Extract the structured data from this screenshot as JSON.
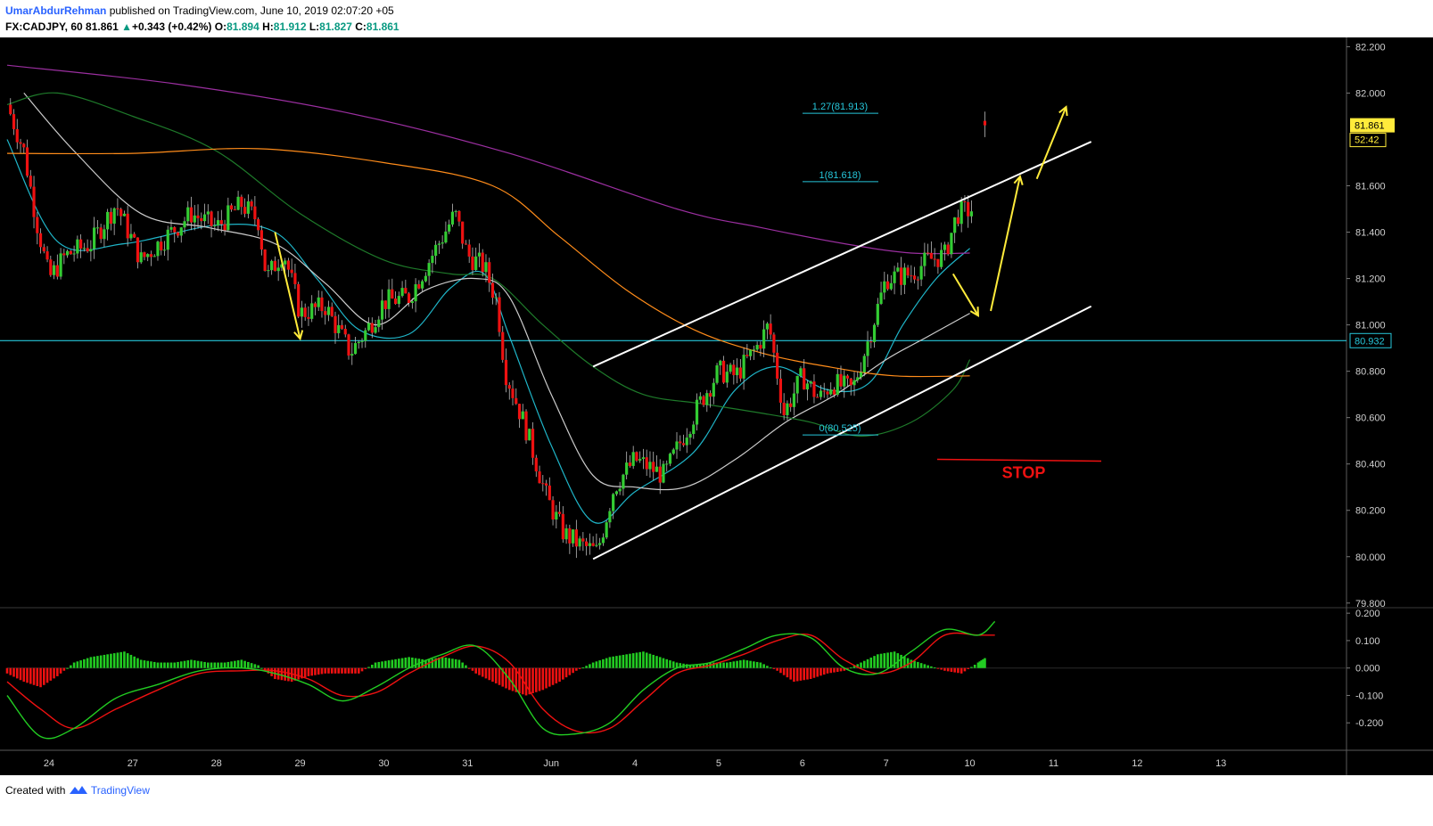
{
  "header": {
    "author": "UmarAbdurRehman",
    "published_text": "published on TradingView.com, June 10, 2019 02:07:20 +05",
    "symbol": "FX:CADJPY, 60",
    "last": "81.861",
    "change": "+0.343 (+0.42%)",
    "o_label": "O:",
    "o": "81.894",
    "h_label": "H:",
    "h": "81.912",
    "l_label": "L:",
    "l": "81.827",
    "c_label": "C:",
    "c": "81.861"
  },
  "footer": {
    "created_with": "Created with",
    "brand": "TradingView"
  },
  "colors": {
    "background": "#000000",
    "up": "#33cc33",
    "down": "#ee1111",
    "ema_fast": "#1fb5c8",
    "ema_mid": "#cccccc",
    "ema_green": "#1e7a2a",
    "ema_orange": "#ff8c1a",
    "ema_purple": "#9b2fa0",
    "channel": "#ffffff",
    "arrows": "#ffeb3b",
    "hline": "#26c6da",
    "stop": "#ee1111",
    "macd": "#22cc22",
    "signal": "#ee1111"
  },
  "chart_data": [
    {
      "type": "candlestick",
      "symbol": "FX:CADJPY",
      "interval": "60",
      "x_ticks": [
        "24",
        "27",
        "28",
        "29",
        "30",
        "31",
        "Jun",
        "4",
        "5",
        "6",
        "7",
        "10",
        "11",
        "12",
        "13"
      ],
      "y_ticks": [
        "82.200",
        "82.000",
        "81.600",
        "81.400",
        "81.200",
        "81.000",
        "80.800",
        "80.600",
        "80.400",
        "80.200",
        "80.000",
        "79.800"
      ],
      "ylim": [
        79.78,
        82.24
      ],
      "xlim": [
        0,
        16
      ],
      "price_path": [
        [
          0.0,
          81.95
        ],
        [
          0.2,
          81.75
        ],
        [
          0.35,
          81.45
        ],
        [
          0.5,
          81.2
        ],
        [
          0.7,
          81.3
        ],
        [
          1.0,
          81.35
        ],
        [
          1.3,
          81.52
        ],
        [
          1.6,
          81.28
        ],
        [
          1.9,
          81.38
        ],
        [
          2.2,
          81.48
        ],
        [
          2.5,
          81.42
        ],
        [
          2.8,
          81.52
        ],
        [
          3.0,
          81.45
        ],
        [
          3.1,
          81.2
        ],
        [
          3.3,
          81.32
        ],
        [
          3.5,
          81.05
        ],
        [
          3.8,
          81.08
        ],
        [
          4.1,
          80.88
        ],
        [
          4.3,
          80.98
        ],
        [
          4.5,
          81.1
        ],
        [
          4.8,
          81.12
        ],
        [
          5.0,
          81.25
        ],
        [
          5.2,
          81.38
        ],
        [
          5.35,
          81.48
        ],
        [
          5.5,
          81.3
        ],
        [
          5.7,
          81.25
        ],
        [
          5.85,
          81.1
        ],
        [
          5.95,
          80.8
        ],
        [
          6.2,
          80.55
        ],
        [
          6.45,
          80.25
        ],
        [
          6.65,
          80.1
        ],
        [
          6.85,
          80.05
        ],
        [
          7.05,
          80.02
        ],
        [
          7.25,
          80.3
        ],
        [
          7.5,
          80.42
        ],
        [
          7.85,
          80.35
        ],
        [
          8.05,
          80.5
        ],
        [
          8.3,
          80.68
        ],
        [
          8.5,
          80.8
        ],
        [
          8.7,
          80.78
        ],
        [
          8.95,
          80.9
        ],
        [
          9.1,
          81.0
        ],
        [
          9.28,
          80.62
        ],
        [
          9.5,
          80.78
        ],
        [
          9.7,
          80.68
        ],
        [
          9.85,
          80.75
        ],
        [
          10.1,
          80.72
        ],
        [
          10.3,
          80.95
        ],
        [
          10.5,
          81.2
        ],
        [
          10.8,
          81.22
        ],
        [
          11.0,
          81.28
        ],
        [
          11.2,
          81.3
        ],
        [
          11.35,
          81.48
        ],
        [
          11.55,
          81.5
        ],
        [
          11.68,
          81.88
        ]
      ],
      "moving_averages": [
        {
          "color": "#1fb5c8",
          "points": [
            [
              0,
              81.8
            ],
            [
              0.6,
              81.36
            ],
            [
              1.4,
              81.35
            ],
            [
              2.5,
              81.43
            ],
            [
              3.2,
              81.4
            ],
            [
              3.7,
              81.2
            ],
            [
              4.2,
              80.98
            ],
            [
              4.8,
              80.96
            ],
            [
              5.3,
              81.16
            ],
            [
              5.7,
              81.22
            ],
            [
              6.0,
              80.95
            ],
            [
              6.5,
              80.48
            ],
            [
              7.0,
              80.15
            ],
            [
              7.5,
              80.28
            ],
            [
              8.2,
              80.45
            ],
            [
              8.7,
              80.72
            ],
            [
              9.2,
              80.82
            ],
            [
              9.8,
              80.72
            ],
            [
              10.3,
              80.75
            ],
            [
              10.7,
              81.0
            ],
            [
              11.1,
              81.2
            ],
            [
              11.5,
              81.33
            ]
          ]
        },
        {
          "color": "#cccccc",
          "points": [
            [
              0.2,
              82.0
            ],
            [
              0.8,
              81.75
            ],
            [
              1.6,
              81.48
            ],
            [
              2.4,
              81.42
            ],
            [
              3.2,
              81.35
            ],
            [
              3.8,
              81.18
            ],
            [
              4.4,
              81.0
            ],
            [
              5.0,
              81.15
            ],
            [
              5.6,
              81.2
            ],
            [
              6.0,
              81.12
            ],
            [
              6.5,
              80.7
            ],
            [
              7.0,
              80.35
            ],
            [
              7.5,
              80.3
            ],
            [
              8.1,
              80.3
            ],
            [
              8.7,
              80.42
            ],
            [
              9.3,
              80.58
            ],
            [
              9.9,
              80.7
            ],
            [
              10.5,
              80.85
            ],
            [
              11.0,
              80.95
            ],
            [
              11.5,
              81.05
            ]
          ]
        },
        {
          "color": "#1e7a2a",
          "points": [
            [
              0,
              81.95
            ],
            [
              0.6,
              82.0
            ],
            [
              1.5,
              81.9
            ],
            [
              2.5,
              81.75
            ],
            [
              3.5,
              81.48
            ],
            [
              4.5,
              81.28
            ],
            [
              5.3,
              81.22
            ],
            [
              5.8,
              81.2
            ],
            [
              6.4,
              81.0
            ],
            [
              7.0,
              80.82
            ],
            [
              7.6,
              80.7
            ],
            [
              8.3,
              80.66
            ],
            [
              9.0,
              80.62
            ],
            [
              9.6,
              80.58
            ],
            [
              10.2,
              80.52
            ],
            [
              10.8,
              80.58
            ],
            [
              11.3,
              80.72
            ],
            [
              11.5,
              80.85
            ]
          ]
        },
        {
          "color": "#ff8c1a",
          "points": [
            [
              0,
              81.74
            ],
            [
              1.5,
              81.74
            ],
            [
              3.0,
              81.76
            ],
            [
              4.5,
              81.7
            ],
            [
              5.8,
              81.6
            ],
            [
              6.6,
              81.38
            ],
            [
              7.4,
              81.15
            ],
            [
              8.2,
              80.98
            ],
            [
              9.0,
              80.88
            ],
            [
              9.8,
              80.82
            ],
            [
              10.6,
              80.78
            ],
            [
              11.5,
              80.78
            ]
          ]
        },
        {
          "color": "#9b2fa0",
          "points": [
            [
              0,
              82.12
            ],
            [
              2.0,
              82.04
            ],
            [
              4.0,
              81.92
            ],
            [
              6.0,
              81.74
            ],
            [
              8.0,
              81.5
            ],
            [
              9.0,
              81.42
            ],
            [
              10.0,
              81.35
            ],
            [
              10.8,
              81.31
            ],
            [
              11.5,
              81.31
            ]
          ]
        }
      ],
      "channel": {
        "upper": [
          [
            7.0,
            80.82
          ],
          [
            12.95,
            81.79
          ]
        ],
        "lower": [
          [
            7.0,
            79.99
          ],
          [
            12.95,
            81.08
          ]
        ]
      },
      "arrows": [
        [
          [
            3.2,
            81.4
          ],
          [
            3.5,
            80.94
          ]
        ],
        [
          [
            11.3,
            81.22
          ],
          [
            11.6,
            81.04
          ]
        ],
        [
          [
            11.75,
            81.06
          ],
          [
            12.1,
            81.64
          ]
        ],
        [
          [
            12.3,
            81.63
          ],
          [
            12.65,
            81.94
          ]
        ]
      ],
      "horizontal_line": {
        "value": 80.932,
        "label": "80.932"
      },
      "fib_levels": [
        {
          "label": "1.27(81.913)",
          "value": 81.913
        },
        {
          "label": "1(81.618)",
          "value": 81.618
        },
        {
          "label": "0(80.525)",
          "value": 80.525
        }
      ],
      "stop": {
        "label": "STOP",
        "value": 80.42
      },
      "price_labels": {
        "last": "81.861",
        "countdown": "52:42"
      }
    },
    {
      "type": "macd",
      "y_ticks": [
        "0.200",
        "0.100",
        "0.000",
        "-0.100",
        "-0.200"
      ],
      "ylim": [
        -0.3,
        0.22
      ],
      "histogram": [
        [
          0.0,
          -0.02
        ],
        [
          0.2,
          -0.05
        ],
        [
          0.4,
          -0.07
        ],
        [
          0.6,
          -0.03
        ],
        [
          0.8,
          0.02
        ],
        [
          1.0,
          0.04
        ],
        [
          1.2,
          0.05
        ],
        [
          1.4,
          0.06
        ],
        [
          1.6,
          0.03
        ],
        [
          1.8,
          0.02
        ],
        [
          2.0,
          0.02
        ],
        [
          2.2,
          0.03
        ],
        [
          2.4,
          0.02
        ],
        [
          2.6,
          0.02
        ],
        [
          2.8,
          0.03
        ],
        [
          3.0,
          0.01
        ],
        [
          3.2,
          -0.04
        ],
        [
          3.4,
          -0.05
        ],
        [
          3.6,
          -0.03
        ],
        [
          3.8,
          -0.02
        ],
        [
          4.0,
          -0.02
        ],
        [
          4.2,
          -0.02
        ],
        [
          4.4,
          0.02
        ],
        [
          4.6,
          0.03
        ],
        [
          4.8,
          0.04
        ],
        [
          5.0,
          0.03
        ],
        [
          5.2,
          0.04
        ],
        [
          5.4,
          0.03
        ],
        [
          5.6,
          -0.02
        ],
        [
          5.8,
          -0.05
        ],
        [
          6.0,
          -0.08
        ],
        [
          6.2,
          -0.1
        ],
        [
          6.4,
          -0.08
        ],
        [
          6.6,
          -0.05
        ],
        [
          6.8,
          -0.01
        ],
        [
          7.0,
          0.02
        ],
        [
          7.2,
          0.04
        ],
        [
          7.4,
          0.05
        ],
        [
          7.6,
          0.06
        ],
        [
          7.8,
          0.04
        ],
        [
          8.0,
          0.02
        ],
        [
          8.2,
          0.01
        ],
        [
          8.4,
          0.02
        ],
        [
          8.6,
          0.02
        ],
        [
          8.8,
          0.03
        ],
        [
          9.0,
          0.02
        ],
        [
          9.2,
          -0.01
        ],
        [
          9.4,
          -0.05
        ],
        [
          9.6,
          -0.04
        ],
        [
          9.8,
          -0.02
        ],
        [
          10.0,
          -0.01
        ],
        [
          10.2,
          0.02
        ],
        [
          10.4,
          0.05
        ],
        [
          10.6,
          0.06
        ],
        [
          10.8,
          0.03
        ],
        [
          11.0,
          0.01
        ],
        [
          11.2,
          -0.01
        ],
        [
          11.4,
          -0.02
        ],
        [
          11.6,
          0.02
        ],
        [
          11.7,
          0.04
        ]
      ],
      "macd_line": [
        [
          0,
          -0.1
        ],
        [
          0.4,
          -0.25
        ],
        [
          0.8,
          -0.22
        ],
        [
          1.3,
          -0.11
        ],
        [
          1.8,
          -0.06
        ],
        [
          2.3,
          -0.01
        ],
        [
          2.8,
          0.0
        ],
        [
          3.2,
          -0.02
        ],
        [
          3.6,
          -0.06
        ],
        [
          4.0,
          -0.12
        ],
        [
          4.4,
          -0.07
        ],
        [
          4.8,
          0.0
        ],
        [
          5.2,
          0.05
        ],
        [
          5.6,
          0.08
        ],
        [
          6.0,
          -0.04
        ],
        [
          6.4,
          -0.22
        ],
        [
          6.8,
          -0.24
        ],
        [
          7.2,
          -0.2
        ],
        [
          7.6,
          -0.08
        ],
        [
          8.0,
          0.0
        ],
        [
          8.4,
          0.02
        ],
        [
          8.8,
          0.07
        ],
        [
          9.2,
          0.12
        ],
        [
          9.6,
          0.11
        ],
        [
          10.0,
          0.0
        ],
        [
          10.4,
          -0.02
        ],
        [
          10.8,
          0.06
        ],
        [
          11.2,
          0.14
        ],
        [
          11.6,
          0.12
        ],
        [
          11.8,
          0.17
        ]
      ],
      "signal_line": [
        [
          0,
          -0.05
        ],
        [
          0.4,
          -0.15
        ],
        [
          0.8,
          -0.22
        ],
        [
          1.3,
          -0.15
        ],
        [
          1.8,
          -0.08
        ],
        [
          2.3,
          -0.02
        ],
        [
          2.8,
          -0.01
        ],
        [
          3.2,
          -0.01
        ],
        [
          3.6,
          -0.04
        ],
        [
          4.0,
          -0.1
        ],
        [
          4.4,
          -0.09
        ],
        [
          4.8,
          -0.02
        ],
        [
          5.2,
          0.04
        ],
        [
          5.6,
          0.08
        ],
        [
          6.0,
          0.02
        ],
        [
          6.4,
          -0.15
        ],
        [
          6.8,
          -0.23
        ],
        [
          7.2,
          -0.22
        ],
        [
          7.6,
          -0.12
        ],
        [
          8.0,
          -0.02
        ],
        [
          8.4,
          0.01
        ],
        [
          8.8,
          0.05
        ],
        [
          9.2,
          0.1
        ],
        [
          9.6,
          0.12
        ],
        [
          10.0,
          0.03
        ],
        [
          10.4,
          -0.02
        ],
        [
          10.8,
          0.02
        ],
        [
          11.2,
          0.12
        ],
        [
          11.6,
          0.12
        ],
        [
          11.8,
          0.12
        ]
      ]
    }
  ]
}
